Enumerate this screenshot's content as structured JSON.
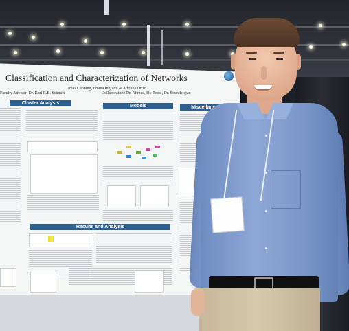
{
  "poster": {
    "title": "Classification and Characterization of Networks",
    "authors": "James Canning, Emma Ingram, & Adriana Ortiz",
    "advisor": "Faculty Advisor: Dr. Karl R.B. Schmitt",
    "collaborators": "Collaborators: Dr. Ahmed, Dr. Rossi, Dr. Soundarajan",
    "sections": {
      "cluster": "Cluster Analysis",
      "models": "Models",
      "misc": "Miscellaneous Networks",
      "results": "Results and Analysis"
    }
  },
  "colors": {
    "section_header": "#2f5f8f",
    "board": "#f3f6f5",
    "shirt": "#8ea8d6"
  }
}
